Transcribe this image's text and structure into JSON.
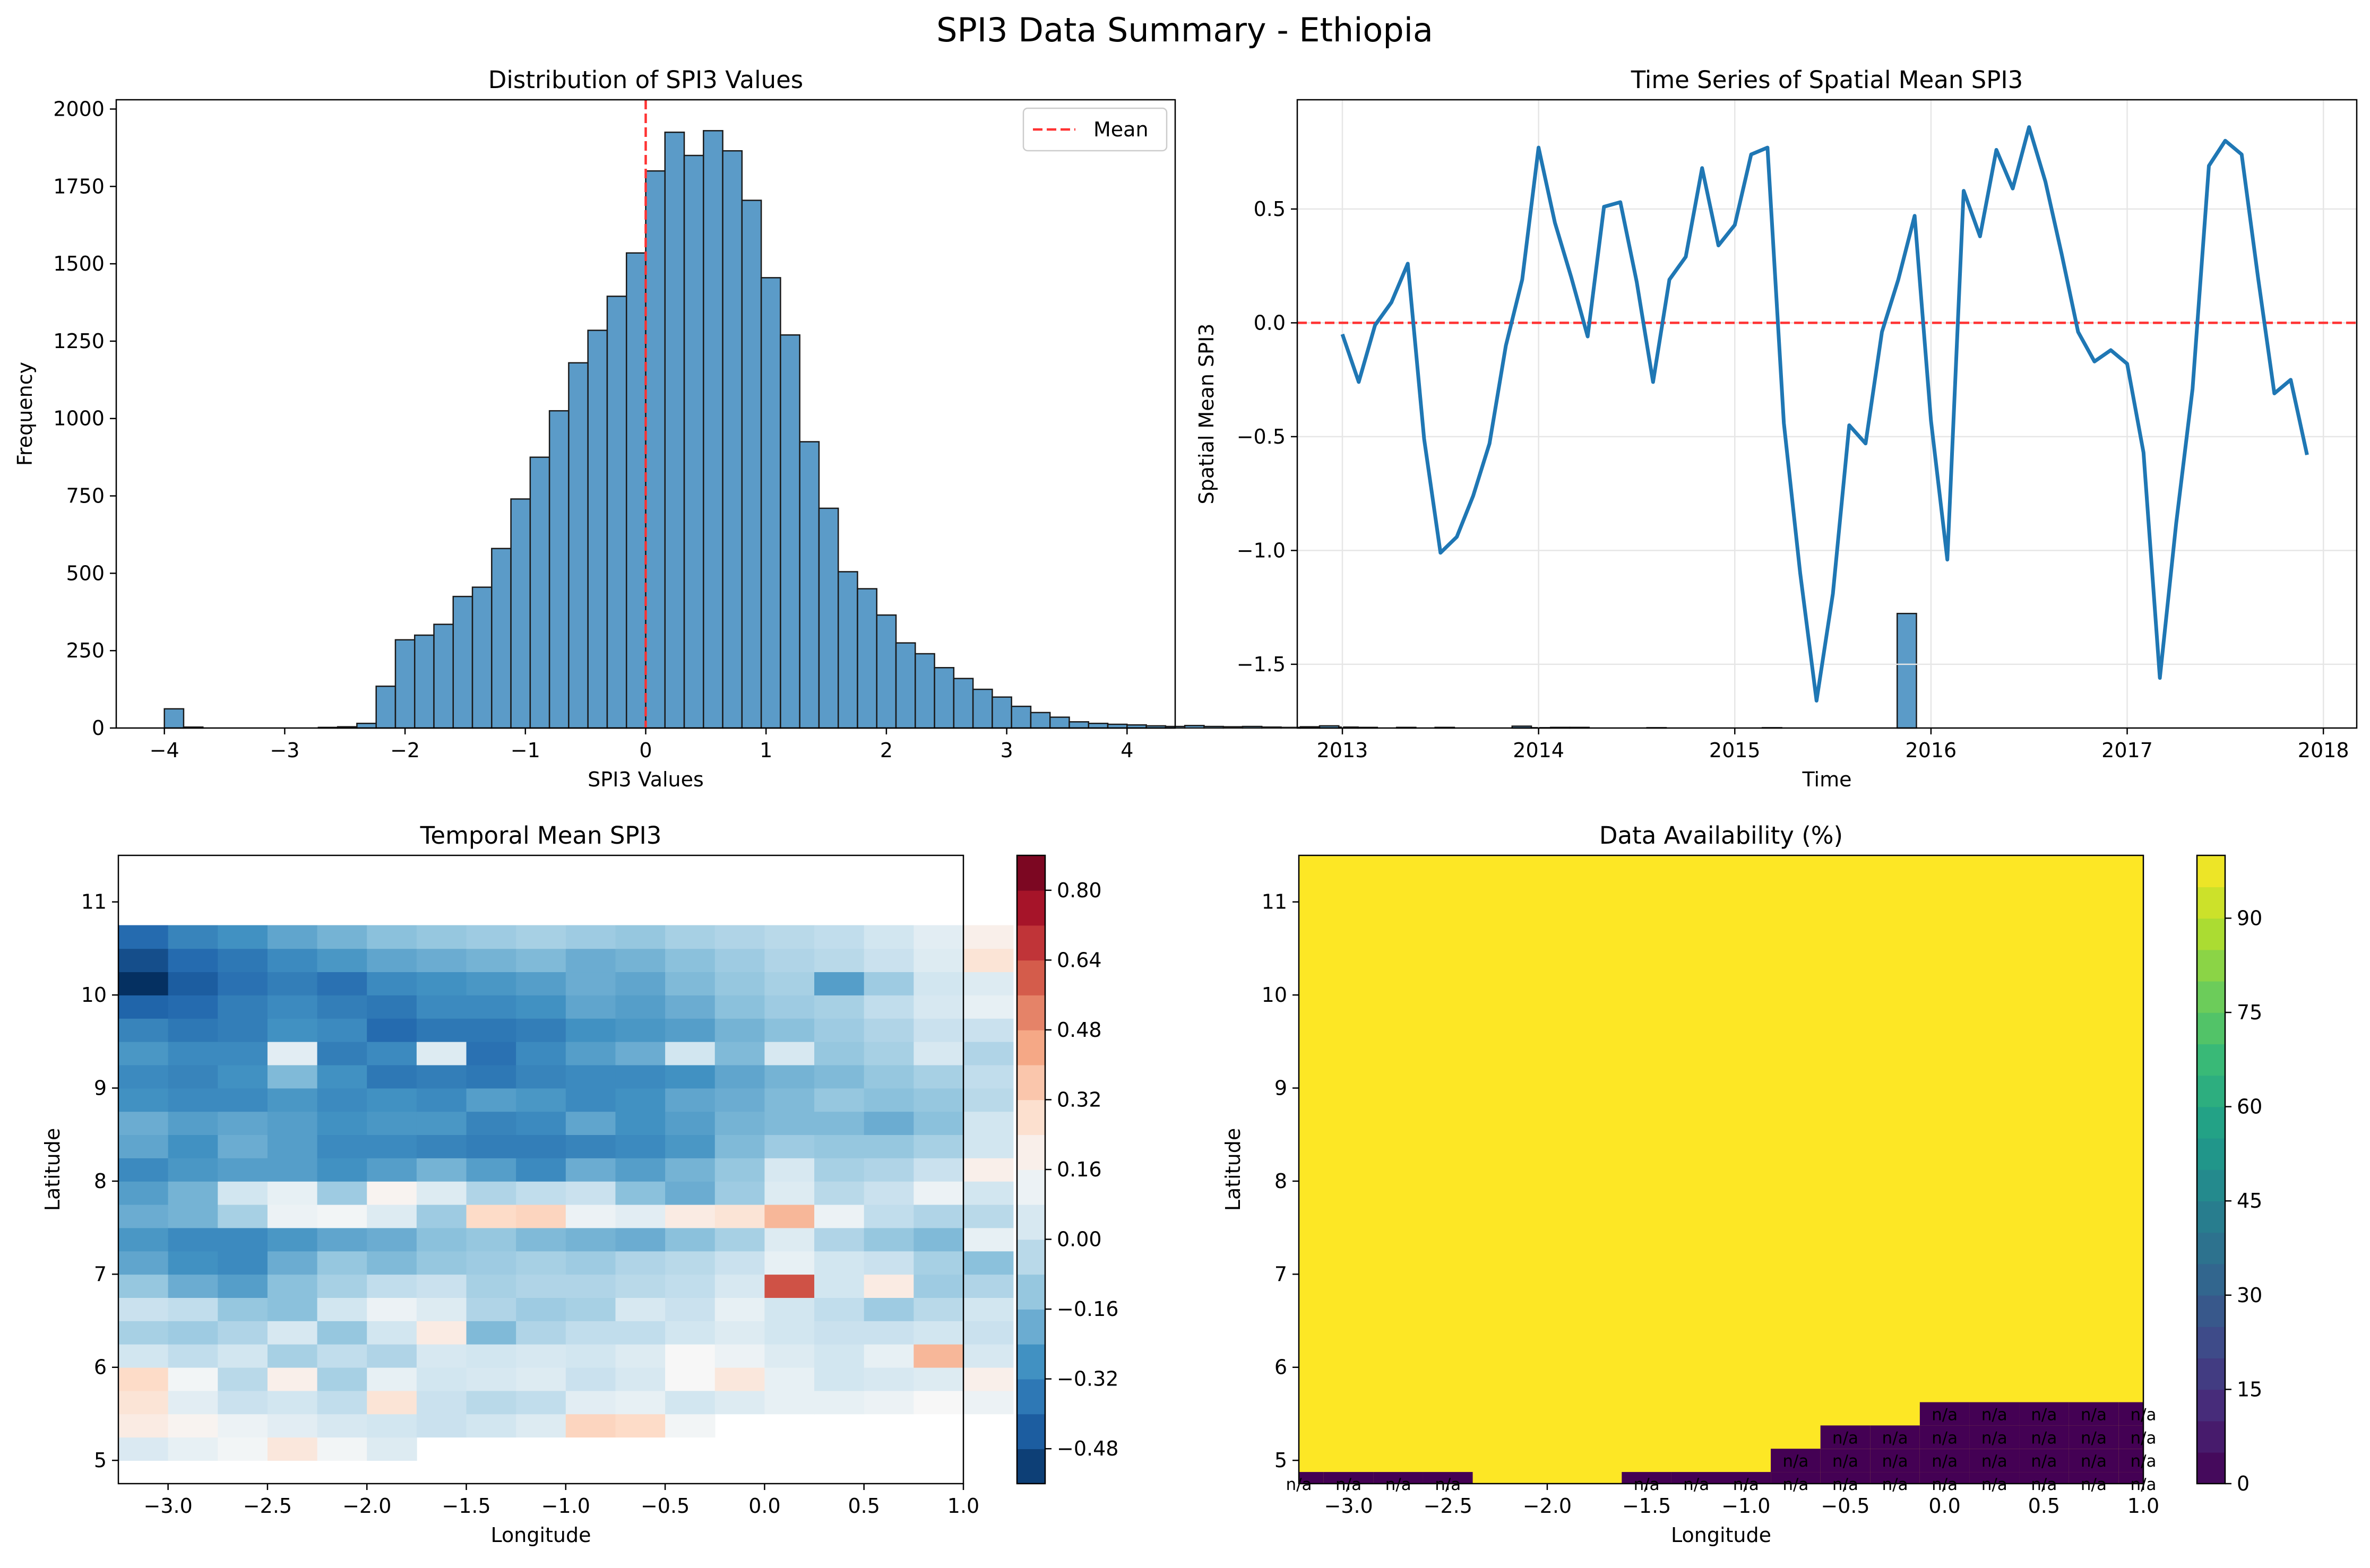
{
  "suptitle": "SPI3 Data Summary - Ethiopia",
  "colors": {
    "hist_fill": "#5b9bc8",
    "line": "#1f77b4",
    "mean_line": "#ff3333",
    "grid": "#e6e6e6",
    "na_text": "#e8000b"
  },
  "chart_data": [
    {
      "id": "histogram",
      "type": "bar",
      "title": "Distribution of SPI3 Values",
      "xlabel": "SPI3 Values",
      "ylabel": "Frequency",
      "xlim": [
        -4.4,
        4.4
      ],
      "ylim": [
        0,
        2030
      ],
      "xticks": [
        -4,
        -3,
        -2,
        -1,
        0,
        1,
        2,
        3,
        4
      ],
      "xtick_labels": [
        "−4",
        "−3",
        "−2",
        "−1",
        "0",
        "1",
        "2",
        "3",
        "4"
      ],
      "yticks": [
        0,
        250,
        500,
        750,
        1000,
        1250,
        1500,
        1750,
        2000
      ],
      "ytick_labels": [
        "0",
        "250",
        "500",
        "750",
        "1000",
        "1250",
        "1500",
        "1750",
        "2000"
      ],
      "bin_start": -4.0,
      "bin_width": 0.16,
      "values": [
        62,
        3,
        0,
        0,
        0,
        0,
        0,
        0,
        2,
        4,
        15,
        135,
        285,
        300,
        335,
        425,
        455,
        580,
        740,
        875,
        1025,
        1180,
        1285,
        1395,
        1535,
        1800,
        1925,
        1850,
        1930,
        1865,
        1705,
        1455,
        1270,
        925,
        710,
        505,
        450,
        365,
        275,
        240,
        195,
        160,
        125,
        100,
        70,
        50,
        35,
        20,
        15,
        12,
        10,
        7,
        5,
        8,
        5,
        4,
        5,
        3,
        2,
        4,
        7,
        3,
        2,
        0,
        2,
        0,
        2,
        0,
        0,
        0,
        6,
        1,
        2,
        2,
        0,
        0,
        0,
        1,
        0,
        0,
        0,
        0,
        0,
        1,
        0,
        0,
        0,
        0,
        0,
        0,
        370
      ],
      "mean_value": 0.0,
      "legend": {
        "label": "Mean",
        "position": "upper right"
      }
    },
    {
      "id": "timeseries",
      "type": "line",
      "title": "Time Series of Spatial Mean SPI3",
      "xlabel": "Time",
      "ylabel": "Spatial Mean SPI3",
      "xlim": [
        2012.77,
        2018.17
      ],
      "ylim": [
        -1.78,
        0.98
      ],
      "xticks": [
        2013,
        2014,
        2015,
        2016,
        2017,
        2018
      ],
      "xtick_labels": [
        "2013",
        "2014",
        "2015",
        "2016",
        "2017",
        "2018"
      ],
      "yticks": [
        -1.5,
        -1.0,
        -0.5,
        0.0,
        0.5
      ],
      "ytick_labels": [
        "−1.5",
        "−1.0",
        "−0.5",
        "0.0",
        "0.5"
      ],
      "grid": true,
      "reference_line": 0.0,
      "x_start": 2013.0,
      "x_step": 0.08333333,
      "values": [
        -0.05,
        -0.26,
        -0.01,
        0.09,
        0.26,
        -0.51,
        -1.01,
        -0.94,
        -0.76,
        -0.53,
        -0.1,
        0.19,
        0.77,
        0.44,
        0.2,
        -0.06,
        0.51,
        0.53,
        0.18,
        -0.26,
        0.19,
        0.29,
        0.68,
        0.34,
        0.43,
        0.74,
        0.77,
        -0.44,
        -1.1,
        -1.66,
        -1.19,
        -0.45,
        -0.53,
        -0.04,
        0.19,
        0.47,
        -0.43,
        -1.04,
        0.58,
        0.38,
        0.76,
        0.59,
        0.86,
        0.62,
        0.3,
        -0.04,
        -0.17,
        -0.12,
        -0.18,
        -0.57,
        -1.56,
        -0.88,
        -0.29,
        0.69,
        0.8,
        0.74,
        0.2,
        -0.31,
        -0.25,
        -0.58
      ]
    },
    {
      "id": "temporal_mean",
      "type": "heatmap",
      "title": "Temporal Mean SPI3",
      "xlabel": "Longitude",
      "ylabel": "Latitude",
      "xlim": [
        -3.25,
        1.0
      ],
      "ylim": [
        4.75,
        11.5
      ],
      "xticks": [
        -3.0,
        -2.5,
        -2.0,
        -1.5,
        -1.0,
        -0.5,
        0.0,
        0.5,
        1.0
      ],
      "xtick_labels": [
        "−3.0",
        "−2.5",
        "−2.0",
        "−1.5",
        "−1.0",
        "−0.5",
        "0.0",
        "0.5",
        "1.0"
      ],
      "yticks": [
        5,
        6,
        7,
        8,
        9,
        10,
        11
      ],
      "ytick_labels": [
        "5",
        "6",
        "7",
        "8",
        "9",
        "10",
        "11"
      ],
      "colorbar_range": [
        -0.56,
        0.88
      ],
      "colorbar_ticks": [
        -0.48,
        -0.32,
        -0.16,
        0.0,
        0.16,
        0.32,
        0.48,
        0.64,
        0.8
      ],
      "colorbar_labels": [
        "−0.48",
        "−0.32",
        "−0.16",
        "0.00",
        "0.16",
        "0.32",
        "0.48",
        "0.64",
        "0.80"
      ],
      "colormap": "RdBu_r",
      "lon_start": -3.25,
      "lon_step": 0.25,
      "lat_start": 4.75,
      "lat_step": 0.25,
      "grid_values": [
        [
          null,
          null,
          null,
          null,
          null,
          null,
          null,
          null,
          null,
          null,
          null,
          null,
          null,
          null,
          null,
          null,
          null,
          null
        ],
        [
          0.05,
          0.1,
          0.14,
          0.24,
          0.14,
          0.06,
          null,
          null,
          null,
          null,
          null,
          null,
          null,
          null,
          null,
          null,
          null,
          null
        ],
        [
          0.22,
          0.18,
          0.12,
          0.08,
          0.04,
          0.02,
          0.0,
          0.02,
          0.06,
          0.32,
          0.3,
          0.14,
          null,
          null,
          null,
          null,
          null,
          null
        ],
        [
          0.26,
          0.08,
          0.0,
          0.02,
          -0.02,
          0.26,
          0.0,
          -0.04,
          -0.02,
          0.08,
          0.1,
          0.02,
          0.06,
          0.1,
          0.1,
          0.12,
          0.16,
          0.12
        ],
        [
          0.3,
          0.14,
          -0.04,
          0.2,
          -0.08,
          0.1,
          0.02,
          0.04,
          0.06,
          0.0,
          0.04,
          0.16,
          0.24,
          0.1,
          0.02,
          0.04,
          0.06,
          0.2
        ],
        [
          0.02,
          -0.02,
          0.02,
          -0.08,
          -0.02,
          -0.06,
          0.04,
          0.02,
          0.04,
          0.02,
          0.06,
          0.16,
          0.12,
          0.06,
          0.02,
          0.1,
          0.4,
          0.04
        ],
        [
          -0.08,
          -0.1,
          -0.06,
          0.04,
          -0.12,
          0.02,
          0.22,
          -0.16,
          -0.06,
          -0.02,
          -0.02,
          0.02,
          0.06,
          0.02,
          0.0,
          0.0,
          0.02,
          0.0
        ],
        [
          0.0,
          -0.02,
          -0.12,
          -0.14,
          0.02,
          0.12,
          0.06,
          -0.06,
          -0.1,
          -0.08,
          0.04,
          0.0,
          0.1,
          0.02,
          -0.02,
          -0.1,
          -0.04,
          0.02
        ],
        [
          -0.12,
          -0.2,
          -0.24,
          -0.14,
          -0.08,
          -0.02,
          0.0,
          -0.08,
          -0.06,
          -0.06,
          -0.04,
          -0.02,
          0.04,
          0.62,
          0.02,
          0.22,
          -0.1,
          -0.06
        ],
        [
          -0.22,
          -0.28,
          -0.3,
          -0.2,
          -0.12,
          -0.16,
          -0.12,
          -0.1,
          -0.08,
          -0.1,
          -0.06,
          -0.04,
          0.0,
          0.1,
          0.02,
          0.0,
          -0.08,
          -0.14
        ],
        [
          -0.26,
          -0.3,
          -0.3,
          -0.26,
          -0.22,
          -0.2,
          -0.14,
          -0.12,
          -0.16,
          -0.18,
          -0.2,
          -0.14,
          -0.08,
          0.06,
          -0.06,
          -0.12,
          -0.16,
          0.1
        ],
        [
          -0.2,
          -0.18,
          -0.08,
          0.12,
          0.14,
          0.06,
          -0.1,
          0.3,
          0.32,
          0.12,
          0.08,
          0.22,
          0.26,
          0.4,
          0.12,
          -0.02,
          -0.06,
          -0.04
        ],
        [
          -0.24,
          -0.18,
          0.02,
          0.1,
          -0.1,
          0.18,
          0.06,
          -0.06,
          -0.02,
          0.0,
          -0.14,
          -0.2,
          -0.1,
          0.06,
          -0.04,
          0.0,
          0.12,
          0.02
        ],
        [
          -0.3,
          -0.26,
          -0.24,
          -0.24,
          -0.28,
          -0.24,
          -0.18,
          -0.24,
          -0.3,
          -0.2,
          -0.24,
          -0.18,
          -0.12,
          0.04,
          -0.08,
          -0.06,
          0.0,
          0.2
        ],
        [
          -0.22,
          -0.28,
          -0.2,
          -0.24,
          -0.3,
          -0.3,
          -0.32,
          -0.34,
          -0.34,
          -0.32,
          -0.3,
          -0.26,
          -0.16,
          -0.1,
          -0.12,
          -0.12,
          -0.08,
          0.02
        ],
        [
          -0.2,
          -0.24,
          -0.22,
          -0.24,
          -0.28,
          -0.26,
          -0.26,
          -0.32,
          -0.3,
          -0.22,
          -0.28,
          -0.24,
          -0.18,
          -0.16,
          -0.16,
          -0.2,
          -0.14,
          0.02
        ],
        [
          -0.28,
          -0.3,
          -0.3,
          -0.26,
          -0.3,
          -0.28,
          -0.3,
          -0.24,
          -0.26,
          -0.3,
          -0.28,
          -0.22,
          -0.2,
          -0.16,
          -0.12,
          -0.14,
          -0.12,
          -0.04
        ],
        [
          -0.3,
          -0.32,
          -0.28,
          -0.16,
          -0.28,
          -0.36,
          -0.34,
          -0.36,
          -0.32,
          -0.3,
          -0.3,
          -0.28,
          -0.22,
          -0.18,
          -0.16,
          -0.12,
          -0.08,
          -0.02
        ],
        [
          -0.26,
          -0.3,
          -0.3,
          0.08,
          -0.34,
          -0.3,
          0.06,
          -0.38,
          -0.3,
          -0.24,
          -0.2,
          0.02,
          -0.16,
          0.04,
          -0.12,
          -0.08,
          0.04,
          -0.06
        ],
        [
          -0.32,
          -0.36,
          -0.34,
          -0.28,
          -0.3,
          -0.4,
          -0.36,
          -0.36,
          -0.34,
          -0.28,
          -0.26,
          -0.24,
          -0.18,
          -0.14,
          -0.1,
          -0.06,
          0.0,
          0.0
        ],
        [
          -0.42,
          -0.4,
          -0.34,
          -0.3,
          -0.34,
          -0.36,
          -0.3,
          -0.3,
          -0.28,
          -0.22,
          -0.24,
          -0.2,
          -0.14,
          -0.1,
          -0.08,
          -0.02,
          0.04,
          0.1
        ],
        [
          -0.56,
          -0.44,
          -0.38,
          -0.34,
          -0.38,
          -0.3,
          -0.28,
          -0.26,
          -0.24,
          -0.2,
          -0.22,
          -0.16,
          -0.12,
          -0.08,
          -0.24,
          -0.1,
          0.02,
          0.06
        ],
        [
          -0.48,
          -0.4,
          -0.36,
          -0.3,
          -0.26,
          -0.22,
          -0.2,
          -0.18,
          -0.16,
          -0.2,
          -0.18,
          -0.14,
          -0.1,
          -0.06,
          -0.04,
          0.0,
          0.06,
          0.26
        ],
        [
          -0.4,
          -0.32,
          -0.28,
          -0.22,
          -0.18,
          -0.14,
          -0.12,
          -0.1,
          -0.08,
          -0.1,
          -0.12,
          -0.08,
          -0.06,
          -0.04,
          -0.02,
          0.02,
          0.08,
          0.2
        ]
      ]
    },
    {
      "id": "availability",
      "type": "heatmap",
      "title": "Data Availability (%)",
      "xlabel": "Longitude",
      "ylabel": "Latitude",
      "xlim": [
        -3.25,
        1.0
      ],
      "ylim": [
        4.75,
        11.5
      ],
      "xticks": [
        -3.0,
        -2.5,
        -2.0,
        -1.5,
        -1.0,
        -0.5,
        0.0,
        0.5,
        1.0
      ],
      "xtick_labels": [
        "−3.0",
        "−2.5",
        "−2.0",
        "−1.5",
        "−1.0",
        "−0.5",
        "0.0",
        "0.5",
        "1.0"
      ],
      "yticks": [
        5,
        6,
        7,
        8,
        9,
        10,
        11
      ],
      "ytick_labels": [
        "5",
        "6",
        "7",
        "8",
        "9",
        "10",
        "11"
      ],
      "colorbar_range": [
        0,
        100
      ],
      "colorbar_ticks": [
        0,
        15,
        30,
        45,
        60,
        75,
        90
      ],
      "colorbar_labels": [
        "0",
        "15",
        "30",
        "45",
        "60",
        "75",
        "90"
      ],
      "colormap": "viridis",
      "full_value": 100,
      "missing_value": 0,
      "missing_label": "n/a",
      "missing_cells": [
        [
          -3.25,
          4.75
        ],
        [
          -3.0,
          4.75
        ],
        [
          -2.75,
          4.75
        ],
        [
          -2.5,
          4.75
        ],
        [
          -1.5,
          4.75
        ],
        [
          -1.25,
          4.75
        ],
        [
          -1.0,
          4.75
        ],
        [
          -0.75,
          4.75
        ],
        [
          -0.5,
          4.75
        ],
        [
          -0.25,
          4.75
        ],
        [
          0.0,
          4.75
        ],
        [
          0.25,
          4.75
        ],
        [
          0.5,
          4.75
        ],
        [
          0.75,
          4.75
        ],
        [
          1.0,
          4.75
        ],
        [
          -0.75,
          5.0
        ],
        [
          -0.5,
          5.0
        ],
        [
          -0.25,
          5.0
        ],
        [
          0.0,
          5.0
        ],
        [
          0.25,
          5.0
        ],
        [
          0.5,
          5.0
        ],
        [
          0.75,
          5.0
        ],
        [
          1.0,
          5.0
        ],
        [
          -0.5,
          5.25
        ],
        [
          -0.25,
          5.25
        ],
        [
          0.0,
          5.25
        ],
        [
          0.25,
          5.25
        ],
        [
          0.5,
          5.25
        ],
        [
          0.75,
          5.25
        ],
        [
          1.0,
          5.25
        ],
        [
          0.0,
          5.5
        ],
        [
          0.25,
          5.5
        ],
        [
          0.5,
          5.5
        ],
        [
          0.75,
          5.5
        ],
        [
          1.0,
          5.5
        ]
      ]
    }
  ]
}
